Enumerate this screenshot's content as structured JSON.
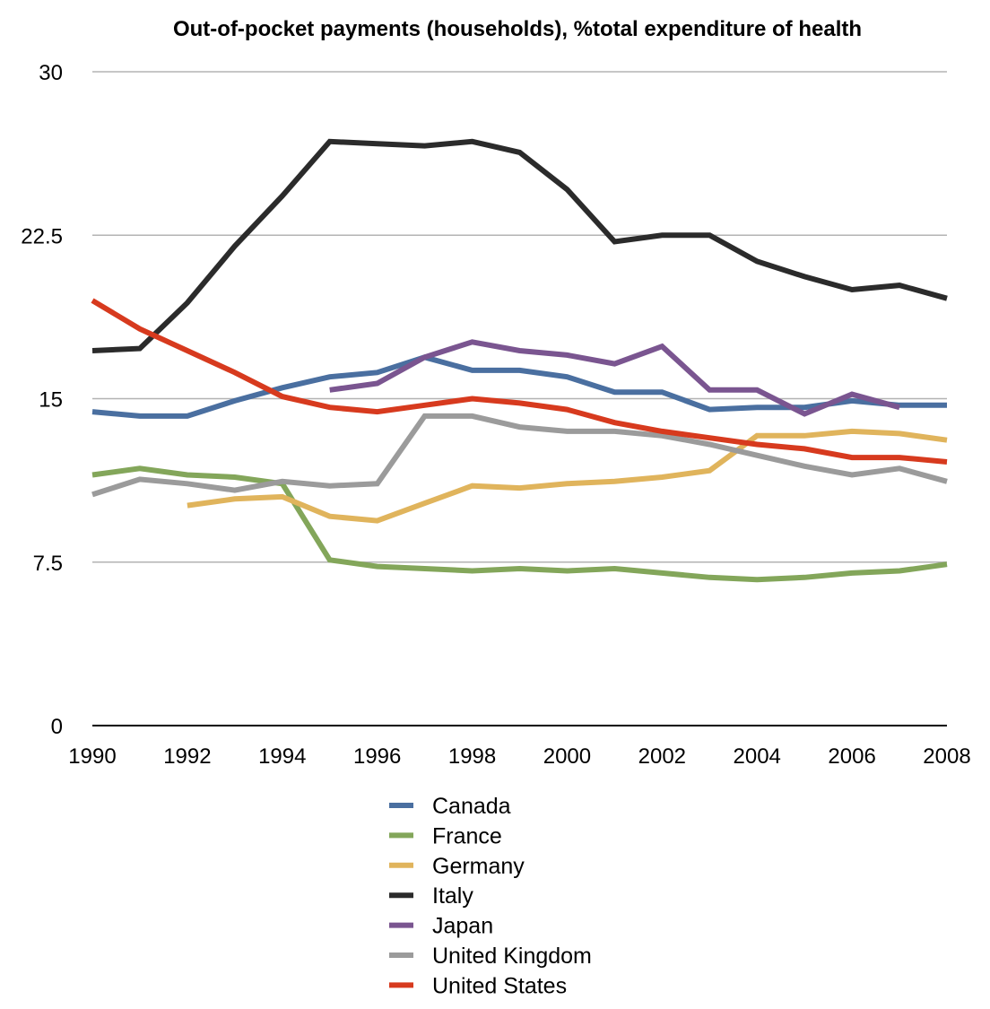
{
  "chart_data": {
    "type": "line",
    "title": "Out-of-pocket payments (households), %total expenditure of health",
    "xlabel": "",
    "ylabel": "",
    "x": [
      1990,
      1991,
      1992,
      1993,
      1994,
      1995,
      1996,
      1997,
      1998,
      1999,
      2000,
      2001,
      2002,
      2003,
      2004,
      2005,
      2006,
      2007,
      2008
    ],
    "xlim": [
      1990,
      2008
    ],
    "ylim": [
      0,
      30
    ],
    "x_tick_labels": [
      "1990",
      "1992",
      "1994",
      "1996",
      "1998",
      "2000",
      "2002",
      "2004",
      "2006",
      "2008"
    ],
    "y_tick_labels": [
      "0",
      "7.5",
      "15",
      "22.5",
      "30"
    ],
    "grid": true,
    "legend_position": "bottom",
    "series": [
      {
        "name": "Canada",
        "color": "#4a6fa0",
        "values": [
          14.4,
          14.2,
          14.2,
          14.9,
          15.5,
          16.0,
          16.2,
          16.9,
          16.3,
          16.3,
          16.0,
          15.3,
          15.3,
          14.5,
          14.6,
          14.6,
          14.9,
          14.7,
          14.7
        ]
      },
      {
        "name": "France",
        "color": "#83a65a",
        "values": [
          11.5,
          11.8,
          11.5,
          11.4,
          11.1,
          7.6,
          7.3,
          7.2,
          7.1,
          7.2,
          7.1,
          7.2,
          7.0,
          6.8,
          6.7,
          6.8,
          7.0,
          7.1,
          7.4
        ]
      },
      {
        "name": "Germany",
        "color": "#e0b45c",
        "values": [
          null,
          null,
          10.1,
          10.4,
          10.5,
          9.6,
          9.4,
          10.2,
          11.0,
          10.9,
          11.1,
          11.2,
          11.4,
          11.7,
          13.3,
          13.3,
          13.5,
          13.4,
          13.1
        ]
      },
      {
        "name": "Italy",
        "color": "#2b2b2b",
        "values": [
          17.2,
          17.3,
          19.4,
          22.0,
          24.3,
          26.8,
          26.7,
          26.6,
          26.8,
          26.3,
          24.6,
          22.2,
          22.5,
          22.5,
          21.3,
          20.6,
          20.0,
          20.2,
          19.6
        ]
      },
      {
        "name": "Japan",
        "color": "#7a5590",
        "values": [
          null,
          null,
          null,
          null,
          null,
          15.4,
          15.7,
          16.9,
          17.6,
          17.2,
          17.0,
          16.6,
          17.4,
          15.4,
          15.4,
          14.3,
          15.2,
          14.6,
          null
        ]
      },
      {
        "name": "United Kingdom",
        "color": "#9b9b9b",
        "values": [
          10.6,
          11.3,
          11.1,
          10.8,
          11.2,
          11.0,
          11.1,
          14.2,
          14.2,
          13.7,
          13.5,
          13.5,
          13.3,
          12.9,
          12.4,
          11.9,
          11.5,
          11.8,
          11.2
        ]
      },
      {
        "name": "United States",
        "color": "#d73a1e",
        "values": [
          19.5,
          18.2,
          17.2,
          16.2,
          15.1,
          14.6,
          14.4,
          14.7,
          15.0,
          14.8,
          14.5,
          13.9,
          13.5,
          13.2,
          12.9,
          12.7,
          12.3,
          12.3,
          12.1
        ]
      }
    ]
  }
}
